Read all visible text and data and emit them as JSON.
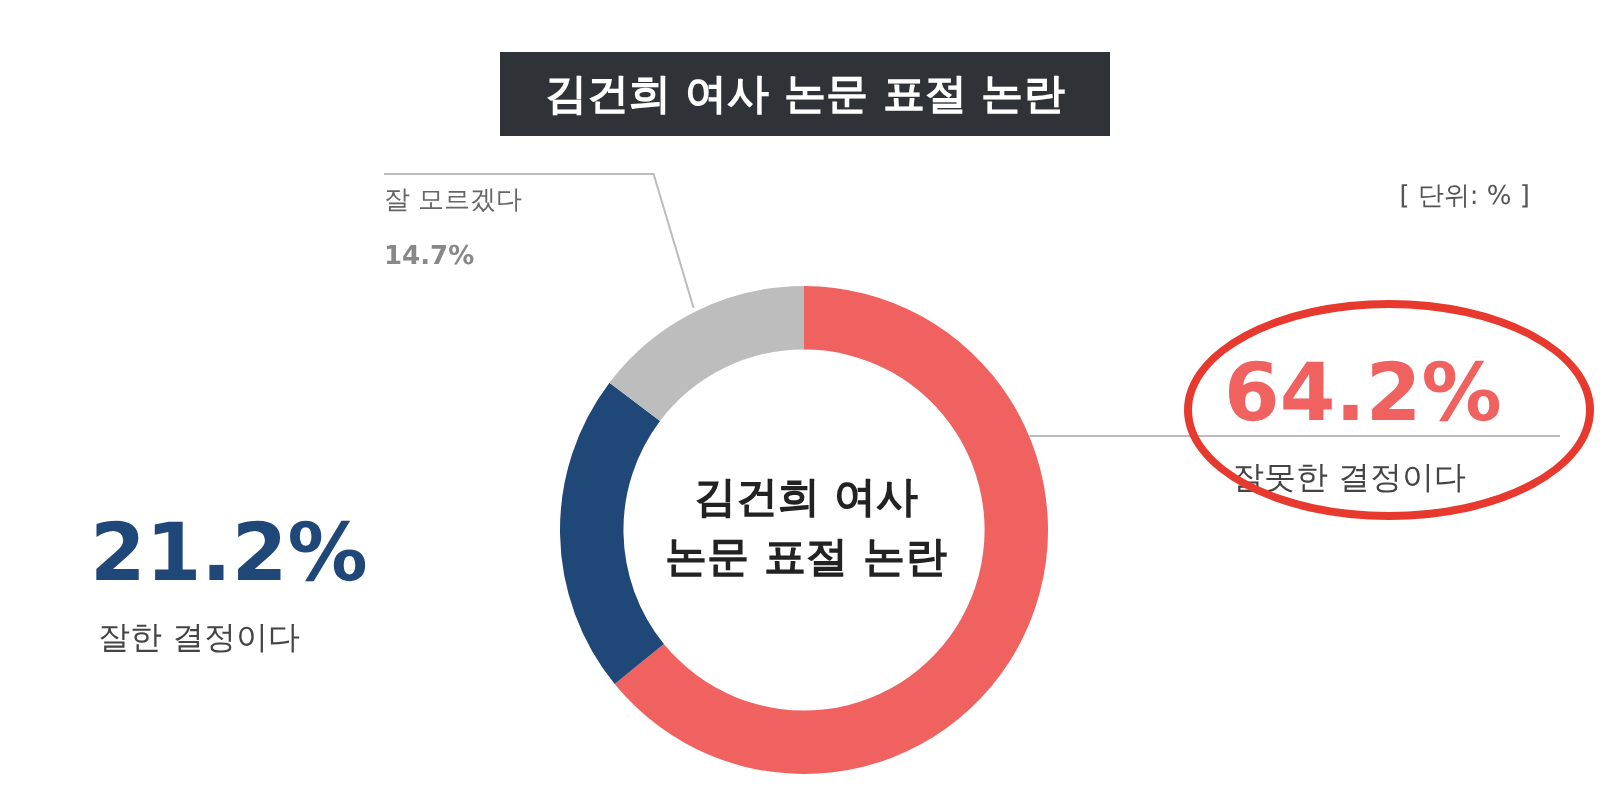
{
  "chart_data": {
    "type": "donut",
    "title": "김건희 여사 논문 표절 논란",
    "categories": [
      "잘못한 결정이다",
      "잘한 결정이다",
      "잘 모르겠다"
    ],
    "values": [
      64.2,
      21.2,
      14.7
    ],
    "colors": [
      "#f0625f",
      "#1f4778",
      "#bdbdbd"
    ],
    "value_labels": [
      "64.2%",
      "21.2%",
      "14.7%"
    ],
    "legend": false,
    "annotations": [
      "[ 단위: % ]",
      "김건희 여사 논문 표절 논란"
    ]
  }
}
